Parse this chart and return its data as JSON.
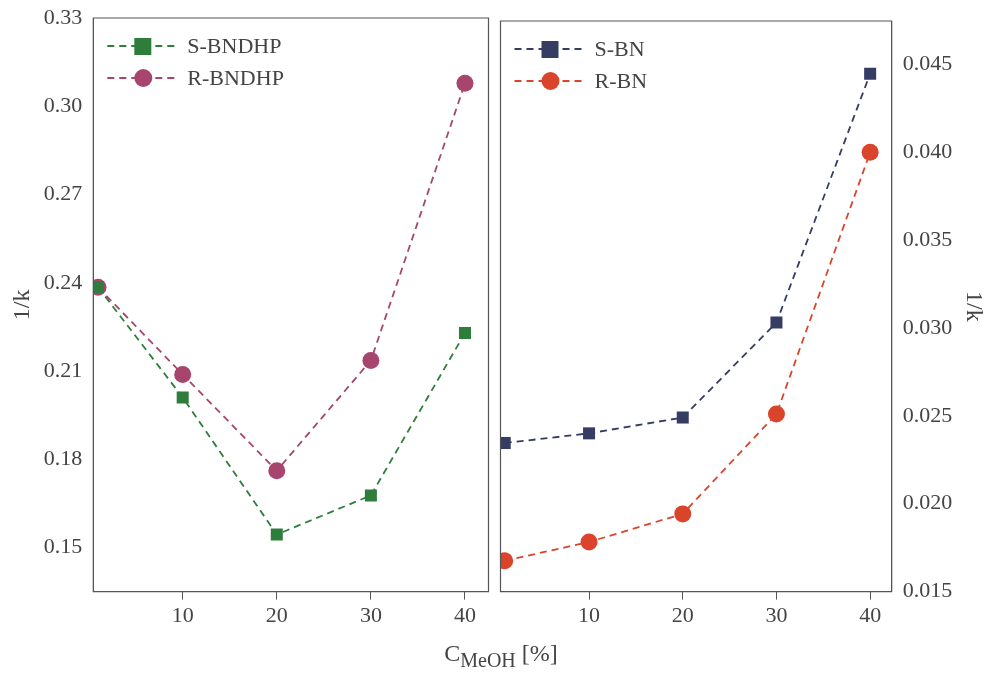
{
  "chart_data": [
    {
      "type": "line",
      "xlabel": "C$_{MeOH}$ [%]",
      "ylabel": "1/k",
      "xlim": [
        0.5,
        42.5
      ],
      "xticks": [
        10,
        20,
        30,
        40
      ],
      "ylim": [
        0.135,
        0.33
      ],
      "yticks": [
        {
          "value": 0.15,
          "label": "0.15"
        },
        {
          "value": 0.18,
          "label": "0.18"
        },
        {
          "value": 0.21,
          "label": "0.21"
        },
        {
          "value": 0.24,
          "label": "0.24"
        },
        {
          "value": 0.27,
          "label": "0.27"
        },
        {
          "value": 0.3,
          "label": "0.30"
        },
        {
          "value": 0.33,
          "label": "0.33"
        }
      ],
      "grid": false,
      "legend": "top left",
      "line_style": "dashed",
      "x": [
        1,
        10,
        20,
        30,
        40
      ],
      "series": [
        {
          "name": "S-BNDHP",
          "color": "#2e7d3a",
          "marker": "square",
          "values": [
            0.2385,
            0.201,
            0.1544,
            0.1677,
            0.2229
          ]
        },
        {
          "name": "R-BNDHP",
          "color": "#a8456e",
          "marker": "circle",
          "values": [
            0.2385,
            0.2088,
            0.1761,
            0.2136,
            0.3078
          ]
        }
      ]
    },
    {
      "type": "line",
      "y2label": "1/k",
      "xlim": [
        0.55,
        42.3
      ],
      "xticks": [
        10,
        20,
        30,
        40
      ],
      "y2lim": [
        0.015,
        0.04745
      ],
      "y2ticks": [
        {
          "value": 0.015,
          "label": "0.015"
        },
        {
          "value": 0.02,
          "label": "0.020"
        },
        {
          "value": 0.025,
          "label": "0.025"
        },
        {
          "value": 0.03,
          "label": "0.030"
        },
        {
          "value": 0.035,
          "label": "0.035"
        },
        {
          "value": 0.04,
          "label": "0.040"
        },
        {
          "value": 0.045,
          "label": "0.045"
        }
      ],
      "grid": false,
      "legend": "top left",
      "line_style": "dashed",
      "x": [
        1,
        10,
        20,
        30,
        40
      ],
      "series": [
        {
          "name": "S-BN",
          "color": "#353d63",
          "marker": "square",
          "axis": "y2",
          "values": [
            0.02345,
            0.024,
            0.0249,
            0.0303,
            0.04445
          ]
        },
        {
          "name": "R-BN",
          "color": "#d9442b",
          "marker": "circle",
          "axis": "y2",
          "values": [
            0.01675,
            0.01782,
            0.01942,
            0.0251,
            0.03998
          ]
        }
      ]
    }
  ]
}
